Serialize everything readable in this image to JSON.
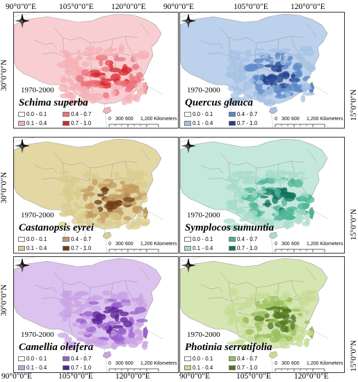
{
  "axes": {
    "top_left": [
      "90°0\"0\"E",
      "105°0\"0\"E",
      "120°0\"0\"E"
    ],
    "top_right": [
      "90°0\"0\"E",
      "105°0\"0\"E",
      "120°0\"0\"E"
    ],
    "bottom_left": [
      "90°0\"0\"E",
      "105°0\"0\"E",
      "120°0\"0\"E"
    ],
    "bottom_right": [
      "90°0\"0\"E",
      "105°0\"0\"E",
      "120°0\"0\"E"
    ],
    "left": [
      "30°0\"0\"N",
      "30°0\"0\"N",
      "30°0\"0\"N"
    ],
    "right": [
      "15°0\"0\"N",
      "15°0\"0\"N",
      "15°0\"0\"N"
    ]
  },
  "common": {
    "period": "1970-2000",
    "scale": [
      "0",
      "300",
      "600",
      "1,200 Kilometers"
    ],
    "classes": [
      "0.0 - 0.1",
      "0.1 - 0.4",
      "0.4 - 0.7",
      "0.7 - 1.0"
    ]
  },
  "panels": [
    {
      "species": "Schima superba",
      "colors": [
        "#ffffff",
        "#f4b1b7",
        "#ec7078",
        "#d8262c"
      ],
      "land": "#f9ced2"
    },
    {
      "species": "Quercus glauca",
      "colors": [
        "#ffffff",
        "#a7c1e3",
        "#5b87c8",
        "#1f3f8a"
      ],
      "land": "#bcd1ec"
    },
    {
      "species": "Castanopsis eyrei",
      "colors": [
        "#ffffff",
        "#d9cc8e",
        "#c49a5e",
        "#6e3c18"
      ],
      "land": "#e3d8a4"
    },
    {
      "species": "Symplocos sumuntia",
      "colors": [
        "#ffffff",
        "#a8dccb",
        "#4bb596",
        "#12735c"
      ],
      "land": "#c4e8dc"
    },
    {
      "species": "Camellia oleifera",
      "colors": [
        "#ffffff",
        "#c9a2e4",
        "#9a5fd0",
        "#5a1f96"
      ],
      "land": "#dcc2ef"
    },
    {
      "species": "Photinia serratifolia",
      "colors": [
        "#ffffff",
        "#c5dc96",
        "#98c05a",
        "#4f7a1e"
      ],
      "land": "#d5e6b2"
    }
  ]
}
